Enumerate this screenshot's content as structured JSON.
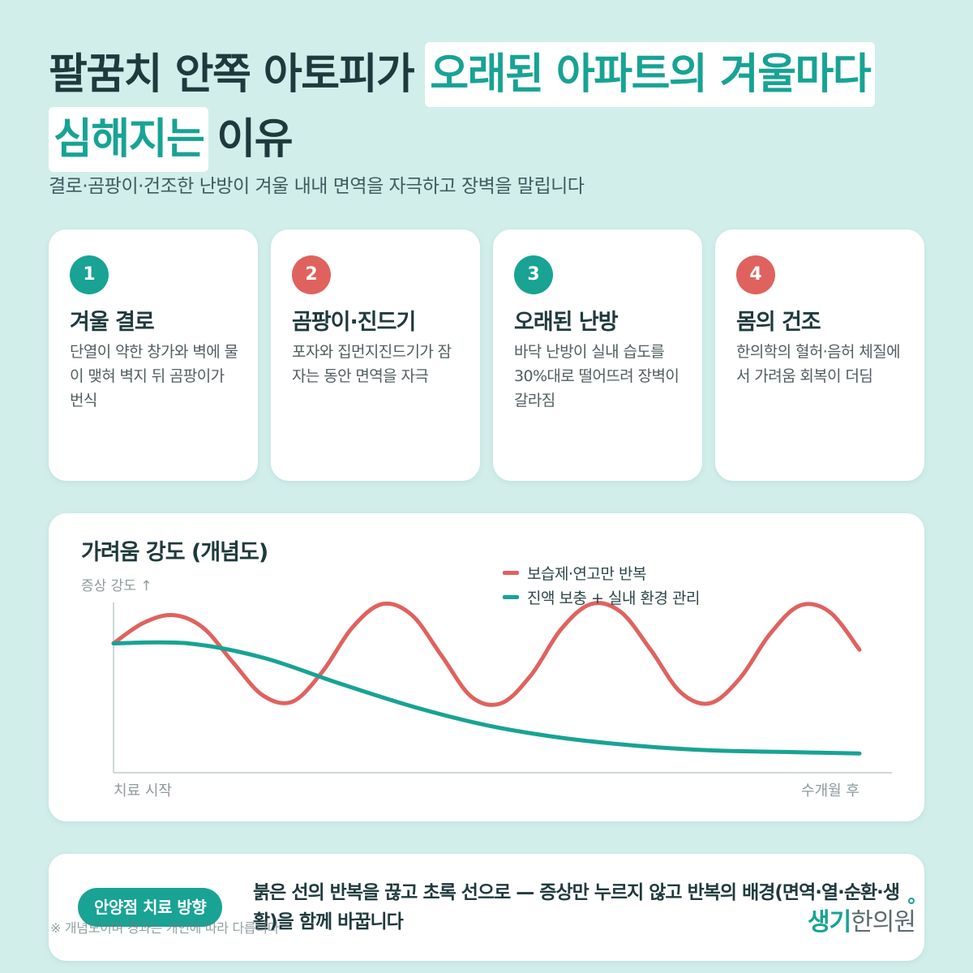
{
  "headline": {
    "line1_plain": "팔꿈치 안쪽 아토피가",
    "line1_highlight": "오래된 아파트의 겨울마다",
    "line2_highlight": "심해지는",
    "line2_plain": "이유"
  },
  "subtitle": "결로·곰팡이·건조한 난방이 겨울 내내 면역을 자극하고 장벽을 말립니다",
  "cards": [
    {
      "number": "1",
      "title": "겨울 결로",
      "desc": "단열이 약한 창가와 벽에 물이 맺혀 벽지 뒤 곰팡이가 번식",
      "color": "#18a394"
    },
    {
      "number": "2",
      "title": "곰팡이·진드기",
      "desc": "포자와 집먼지진드기가 잠자는 동안 면역을 자극",
      "color": "#df625e"
    },
    {
      "number": "3",
      "title": "오래된 난방",
      "desc": "바닥 난방이 실내 습도를 30%대로 떨어뜨려 장벽이 갈라짐",
      "color": "#18a394"
    },
    {
      "number": "4",
      "title": "몸의 건조",
      "desc": "한의학의 혈허·음허 체질에서 가려움 회복이 더딤",
      "color": "#df625e"
    }
  ],
  "chart_data": {
    "type": "line",
    "title": "가려움 강도 (개념도)",
    "ylabel": "증상 강도 ↑",
    "x_start_label": "치료 시작",
    "x_end_label": "수개월 후",
    "xlim": [
      0,
      1
    ],
    "ylim": [
      0,
      1
    ],
    "grid": false,
    "legend_position": "top-right",
    "series": [
      {
        "name": "보습제·연고만 반복",
        "color": "#df625e",
        "x": [
          0,
          0.04,
          0.08,
          0.12,
          0.16,
          0.2,
          0.24,
          0.28,
          0.32,
          0.36,
          0.4,
          0.44,
          0.48,
          0.52,
          0.56,
          0.6,
          0.64,
          0.68,
          0.72,
          0.76,
          0.8,
          0.84,
          0.88,
          0.92,
          0.96,
          1.0
        ],
        "y": [
          0.75,
          0.88,
          0.93,
          0.85,
          0.63,
          0.42,
          0.38,
          0.57,
          0.85,
          1.0,
          0.93,
          0.67,
          0.41,
          0.37,
          0.55,
          0.84,
          1.0,
          0.95,
          0.71,
          0.44,
          0.37,
          0.53,
          0.81,
          0.99,
          0.95,
          0.71
        ]
      },
      {
        "name": "진액 보충 + 실내 환경 관리",
        "color": "#18a394",
        "x": [
          0,
          0.1,
          0.2,
          0.3,
          0.4,
          0.5,
          0.6,
          0.7,
          0.8,
          0.9,
          1.0
        ],
        "y": [
          0.75,
          0.75,
          0.66,
          0.5,
          0.35,
          0.23,
          0.15,
          0.1,
          0.07,
          0.06,
          0.05
        ]
      }
    ]
  },
  "bottom": {
    "pill": "안양점 치료 방향",
    "text": "붉은 선의 반복을 끊고 초록 선으로 — 증상만 누르지 않고 반복의 배경(면역·열·순환·생활)을 함께 바꿉니다"
  },
  "footnote": "※ 개념도이며 경과는 개인에 따라 다릅니다",
  "logo": {
    "part1": "생기",
    "part2": "한의원"
  }
}
